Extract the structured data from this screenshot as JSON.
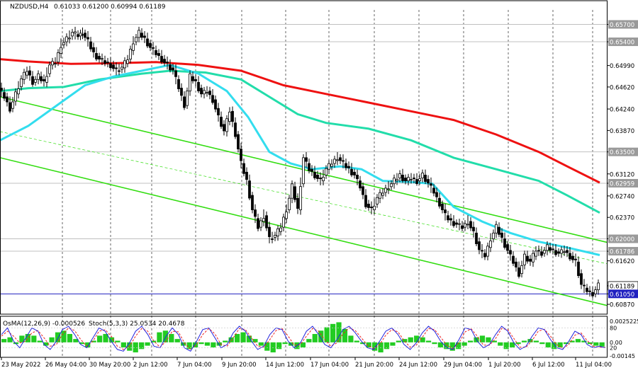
{
  "header": {
    "symbol": "NZDUSD,H4",
    "ohlc": "0.61033 0.61200 0.60994 0.61189"
  },
  "indicator_header": {
    "osma": "OsMA(12,26,9) -0.000526",
    "stoch": "Stoch(5,3,3) 25.0534 20.4678"
  },
  "colors": {
    "background": "#ffffff",
    "candles": "#000000",
    "grid": "#000000",
    "ma_red": "#ee1111",
    "ma_teal": "#22ddaa",
    "ma_cyan": "#33ddee",
    "channel_green": "#33dd11",
    "h_line_gray": "#c0c0c0",
    "h_line_blue": "#2020c0",
    "osma_bars": "#22cc22",
    "stoch_main": "#2222dd",
    "stoch_signal": "#ee2222",
    "axis_label_bg": "#9a9a9a"
  },
  "chart_data": {
    "type": "candlestick",
    "title": "NZDUSD,H4",
    "y_range": [
      0.607,
      0.6595
    ],
    "price_axis_ticks": [
      "0.65700",
      "0.65400",
      "0.64990",
      "0.64620",
      "0.64240",
      "0.63870",
      "0.63500",
      "0.63120",
      "0.62959",
      "0.62740",
      "0.62370",
      "0.62000",
      "0.61786",
      "0.61620",
      "0.61189",
      "0.61050",
      "0.60870"
    ],
    "marked_levels": [
      {
        "value": 0.657,
        "label": "0.65700",
        "style": "gray"
      },
      {
        "value": 0.654,
        "label": "0.65400",
        "style": "gray"
      },
      {
        "value": 0.635,
        "label": "0.63500",
        "style": "gray"
      },
      {
        "value": 0.62959,
        "label": "0.62959",
        "style": "gray"
      },
      {
        "value": 0.62,
        "label": "0.62000",
        "style": "gray"
      },
      {
        "value": 0.61786,
        "label": "0.61786",
        "style": "gray"
      },
      {
        "value": 0.6105,
        "label": "0.61050",
        "style": "blue"
      }
    ],
    "current_price": {
      "value": 0.61189,
      "label": "0.61189"
    },
    "x_labels": [
      "23 May 2022",
      "26 May 04:00",
      "30 May 20:00",
      "2 Jun 12:00",
      "7 Jun 04:00",
      "9 Jun 20:00",
      "14 Jun 12:00",
      "17 Jun 04:00",
      "21 Jun 20:00",
      "24 Jun 12:00",
      "29 Jun 04:00",
      "1 Jul 20:00",
      "6 Jul 12:00",
      "11 Jul 04:00"
    ],
    "series_path": [
      [
        0,
        0.646
      ],
      [
        8,
        0.6445
      ],
      [
        16,
        0.6425
      ],
      [
        24,
        0.645
      ],
      [
        32,
        0.6475
      ],
      [
        40,
        0.649
      ],
      [
        48,
        0.647
      ],
      [
        56,
        0.648
      ],
      [
        64,
        0.647
      ],
      [
        72,
        0.65
      ],
      [
        80,
        0.6505
      ],
      [
        88,
        0.6535
      ],
      [
        96,
        0.6545
      ],
      [
        104,
        0.6555
      ],
      [
        112,
        0.655
      ],
      [
        118,
        0.6555
      ],
      [
        126,
        0.654
      ],
      [
        134,
        0.652
      ],
      [
        142,
        0.651
      ],
      [
        150,
        0.6505
      ],
      [
        158,
        0.65
      ],
      [
        166,
        0.649
      ],
      [
        174,
        0.6495
      ],
      [
        182,
        0.651
      ],
      [
        190,
        0.654
      ],
      [
        198,
        0.6555
      ],
      [
        206,
        0.6545
      ],
      [
        214,
        0.653
      ],
      [
        222,
        0.652
      ],
      [
        230,
        0.651
      ],
      [
        238,
        0.65
      ],
      [
        246,
        0.649
      ],
      [
        254,
        0.646
      ],
      [
        262,
        0.643
      ],
      [
        270,
        0.648
      ],
      [
        278,
        0.647
      ],
      [
        286,
        0.645
      ],
      [
        294,
        0.6455
      ],
      [
        302,
        0.644
      ],
      [
        310,
        0.641
      ],
      [
        318,
        0.6385
      ],
      [
        326,
        0.642
      ],
      [
        334,
        0.638
      ],
      [
        342,
        0.633
      ],
      [
        350,
        0.63
      ],
      [
        358,
        0.625
      ],
      [
        366,
        0.622
      ],
      [
        374,
        0.624
      ],
      [
        382,
        0.62
      ],
      [
        390,
        0.6205
      ],
      [
        398,
        0.622
      ],
      [
        406,
        0.625
      ],
      [
        414,
        0.629
      ],
      [
        422,
        0.625
      ],
      [
        430,
        0.634
      ],
      [
        438,
        0.632
      ],
      [
        446,
        0.631
      ],
      [
        454,
        0.63
      ],
      [
        462,
        0.632
      ],
      [
        470,
        0.633
      ],
      [
        478,
        0.634
      ],
      [
        486,
        0.633
      ],
      [
        494,
        0.632
      ],
      [
        502,
        0.631
      ],
      [
        510,
        0.629
      ],
      [
        518,
        0.626
      ],
      [
        526,
        0.625
      ],
      [
        534,
        0.627
      ],
      [
        542,
        0.628
      ],
      [
        550,
        0.629
      ],
      [
        558,
        0.63
      ],
      [
        566,
        0.631
      ],
      [
        574,
        0.63
      ],
      [
        582,
        0.6305
      ],
      [
        590,
        0.63
      ],
      [
        598,
        0.631
      ],
      [
        606,
        0.6295
      ],
      [
        614,
        0.628
      ],
      [
        622,
        0.626
      ],
      [
        630,
        0.624
      ],
      [
        638,
        0.623
      ],
      [
        646,
        0.6225
      ],
      [
        654,
        0.622
      ],
      [
        662,
        0.623
      ],
      [
        670,
        0.621
      ],
      [
        678,
        0.618
      ],
      [
        686,
        0.617
      ],
      [
        694,
        0.62
      ],
      [
        702,
        0.622
      ],
      [
        710,
        0.62
      ],
      [
        718,
        0.618
      ],
      [
        726,
        0.616
      ],
      [
        734,
        0.614
      ],
      [
        742,
        0.617
      ],
      [
        750,
        0.616
      ],
      [
        758,
        0.618
      ],
      [
        766,
        0.6175
      ],
      [
        774,
        0.6185
      ],
      [
        782,
        0.618
      ],
      [
        790,
        0.6175
      ],
      [
        798,
        0.618
      ],
      [
        806,
        0.617
      ],
      [
        814,
        0.616
      ],
      [
        822,
        0.612
      ],
      [
        830,
        0.611
      ],
      [
        838,
        0.6105
      ],
      [
        846,
        0.6119
      ]
    ],
    "moving_averages": [
      {
        "color_key": "ma_red",
        "points": [
          [
            0,
            0.651
          ],
          [
            40,
            0.6506
          ],
          [
            100,
            0.6502
          ],
          [
            160,
            0.6503
          ],
          [
            220,
            0.6505
          ],
          [
            280,
            0.65
          ],
          [
            340,
            0.649
          ],
          [
            400,
            0.6465
          ],
          [
            460,
            0.645
          ],
          [
            520,
            0.6435
          ],
          [
            580,
            0.642
          ],
          [
            640,
            0.6405
          ],
          [
            700,
            0.638
          ],
          [
            760,
            0.635
          ],
          [
            800,
            0.6325
          ],
          [
            846,
            0.6297
          ]
        ]
      },
      {
        "color_key": "ma_teal",
        "points": [
          [
            0,
            0.6455
          ],
          [
            40,
            0.646
          ],
          [
            90,
            0.6462
          ],
          [
            140,
            0.6475
          ],
          [
            200,
            0.6485
          ],
          [
            240,
            0.649
          ],
          [
            290,
            0.6487
          ],
          [
            340,
            0.6475
          ],
          [
            380,
            0.6445
          ],
          [
            420,
            0.6415
          ],
          [
            460,
            0.64
          ],
          [
            520,
            0.639
          ],
          [
            580,
            0.637
          ],
          [
            640,
            0.634
          ],
          [
            700,
            0.632
          ],
          [
            760,
            0.63
          ],
          [
            800,
            0.6275
          ],
          [
            846,
            0.6245
          ]
        ]
      },
      {
        "color_key": "ma_cyan",
        "points": [
          [
            0,
            0.637
          ],
          [
            40,
            0.6395
          ],
          [
            80,
            0.643
          ],
          [
            120,
            0.6465
          ],
          [
            160,
            0.648
          ],
          [
            200,
            0.649
          ],
          [
            240,
            0.65
          ],
          [
            280,
            0.6485
          ],
          [
            320,
            0.6455
          ],
          [
            350,
            0.641
          ],
          [
            380,
            0.635
          ],
          [
            410,
            0.633
          ],
          [
            440,
            0.632
          ],
          [
            480,
            0.6325
          ],
          [
            510,
            0.632
          ],
          [
            540,
            0.63
          ],
          [
            580,
            0.6298
          ],
          [
            610,
            0.6295
          ],
          [
            640,
            0.6255
          ],
          [
            680,
            0.623
          ],
          [
            720,
            0.621
          ],
          [
            760,
            0.6195
          ],
          [
            800,
            0.6185
          ],
          [
            846,
            0.6172
          ]
        ]
      }
    ],
    "channel_lines": [
      {
        "style": "solid",
        "from": [
          0,
          0.6445
        ],
        "to": [
          856,
          0.6194
        ]
      },
      {
        "style": "dashed",
        "from": [
          0,
          0.6385
        ],
        "to": [
          856,
          0.6157
        ]
      },
      {
        "style": "solid",
        "from": [
          0,
          0.634
        ],
        "to": [
          856,
          0.6085
        ]
      }
    ],
    "osma_range": [
      -0.00145,
      0.002525
    ],
    "osma_ticks": [
      "0.0025225",
      "0.00",
      "-0.00145"
    ],
    "stoch_ticks": [
      "80",
      "20"
    ],
    "osma_values": [
      0.0004,
      0.0006,
      -0.0002,
      0.0008,
      0.001,
      0.0008,
      0.0002,
      -0.0004,
      0.0006,
      0.0012,
      0.0014,
      0.001,
      0.0004,
      -0.0002,
      -0.0006,
      0.0002,
      0.0008,
      0.001,
      0.0006,
      0.0002,
      -0.0006,
      -0.001,
      -0.0012,
      -0.0008,
      -0.0004,
      0.0002,
      0.0012,
      0.0014,
      0.001,
      0.0004,
      -0.0004,
      -0.0008,
      -0.0006,
      -0.0002,
      -0.0004,
      -0.0006,
      -0.0004,
      0.0002,
      0.0006,
      0.001,
      0.0012,
      0.0008,
      0.0004,
      -0.0004,
      -0.001,
      -0.0012,
      -0.0008,
      -0.0002,
      -0.0004,
      -0.0008,
      -0.0006,
      0.0004,
      0.001,
      0.0014,
      0.0018,
      0.0022,
      0.0024,
      0.0016,
      0.0008,
      0.0002,
      -0.0002,
      -0.0006,
      -0.001,
      -0.0012,
      -0.0008,
      -0.0004,
      0.0002,
      0.0004,
      0.0006,
      0.0008,
      0.0006,
      0.0002,
      -0.0002,
      -0.0006,
      -0.0008,
      -0.001,
      -0.0008,
      -0.0004,
      0.0002,
      0.0006,
      0.0008,
      0.0006,
      0.0002,
      -0.0004,
      -0.0008,
      -0.0006,
      -0.0002,
      0.0002,
      0.0004,
      0.0002,
      -0.0002,
      -0.0006,
      -0.0008,
      -0.0006,
      -0.0002,
      0.0002,
      0.0004,
      0.0002,
      -0.0002,
      -0.0004,
      -0.0005
    ],
    "stoch_main_values": [
      60,
      80,
      40,
      20,
      50,
      80,
      70,
      30,
      15,
      40,
      75,
      85,
      60,
      30,
      20,
      50,
      80,
      70,
      40,
      15,
      10,
      35,
      70,
      85,
      60,
      25,
      20,
      55,
      80,
      60,
      20,
      10,
      40,
      75,
      80,
      50,
      20,
      30,
      65,
      85,
      70,
      40,
      15,
      25,
      60,
      80,
      75,
      40,
      20,
      35,
      70,
      85,
      60,
      30,
      20,
      45,
      75,
      85,
      65,
      40,
      20,
      15,
      40,
      70,
      80,
      60,
      30,
      15,
      35,
      65,
      85,
      70,
      40,
      20,
      15,
      45,
      80,
      75,
      40,
      20,
      30,
      60,
      85,
      70,
      35,
      15,
      25,
      55,
      80,
      75,
      45,
      20,
      15,
      40,
      70,
      60,
      30,
      20,
      25,
      20
    ],
    "stoch_signal_values": [
      55,
      70,
      55,
      35,
      40,
      65,
      72,
      50,
      25,
      30,
      60,
      80,
      72,
      45,
      25,
      40,
      70,
      75,
      55,
      25,
      15,
      25,
      55,
      78,
      70,
      40,
      22,
      40,
      70,
      68,
      35,
      15,
      30,
      60,
      78,
      62,
      30,
      25,
      50,
      78,
      75,
      50,
      25,
      22,
      45,
      72,
      78,
      55,
      28,
      30,
      55,
      78,
      70,
      45,
      25,
      35,
      62,
      80,
      72,
      50,
      28,
      18,
      30,
      58,
      75,
      68,
      42,
      22,
      28,
      52,
      78,
      75,
      52,
      28,
      18,
      35,
      68,
      77,
      55,
      28,
      28,
      48,
      78,
      75,
      48,
      22,
      22,
      42,
      70,
      76,
      55,
      30,
      18,
      30,
      58,
      65,
      42,
      25,
      22,
      22
    ]
  }
}
